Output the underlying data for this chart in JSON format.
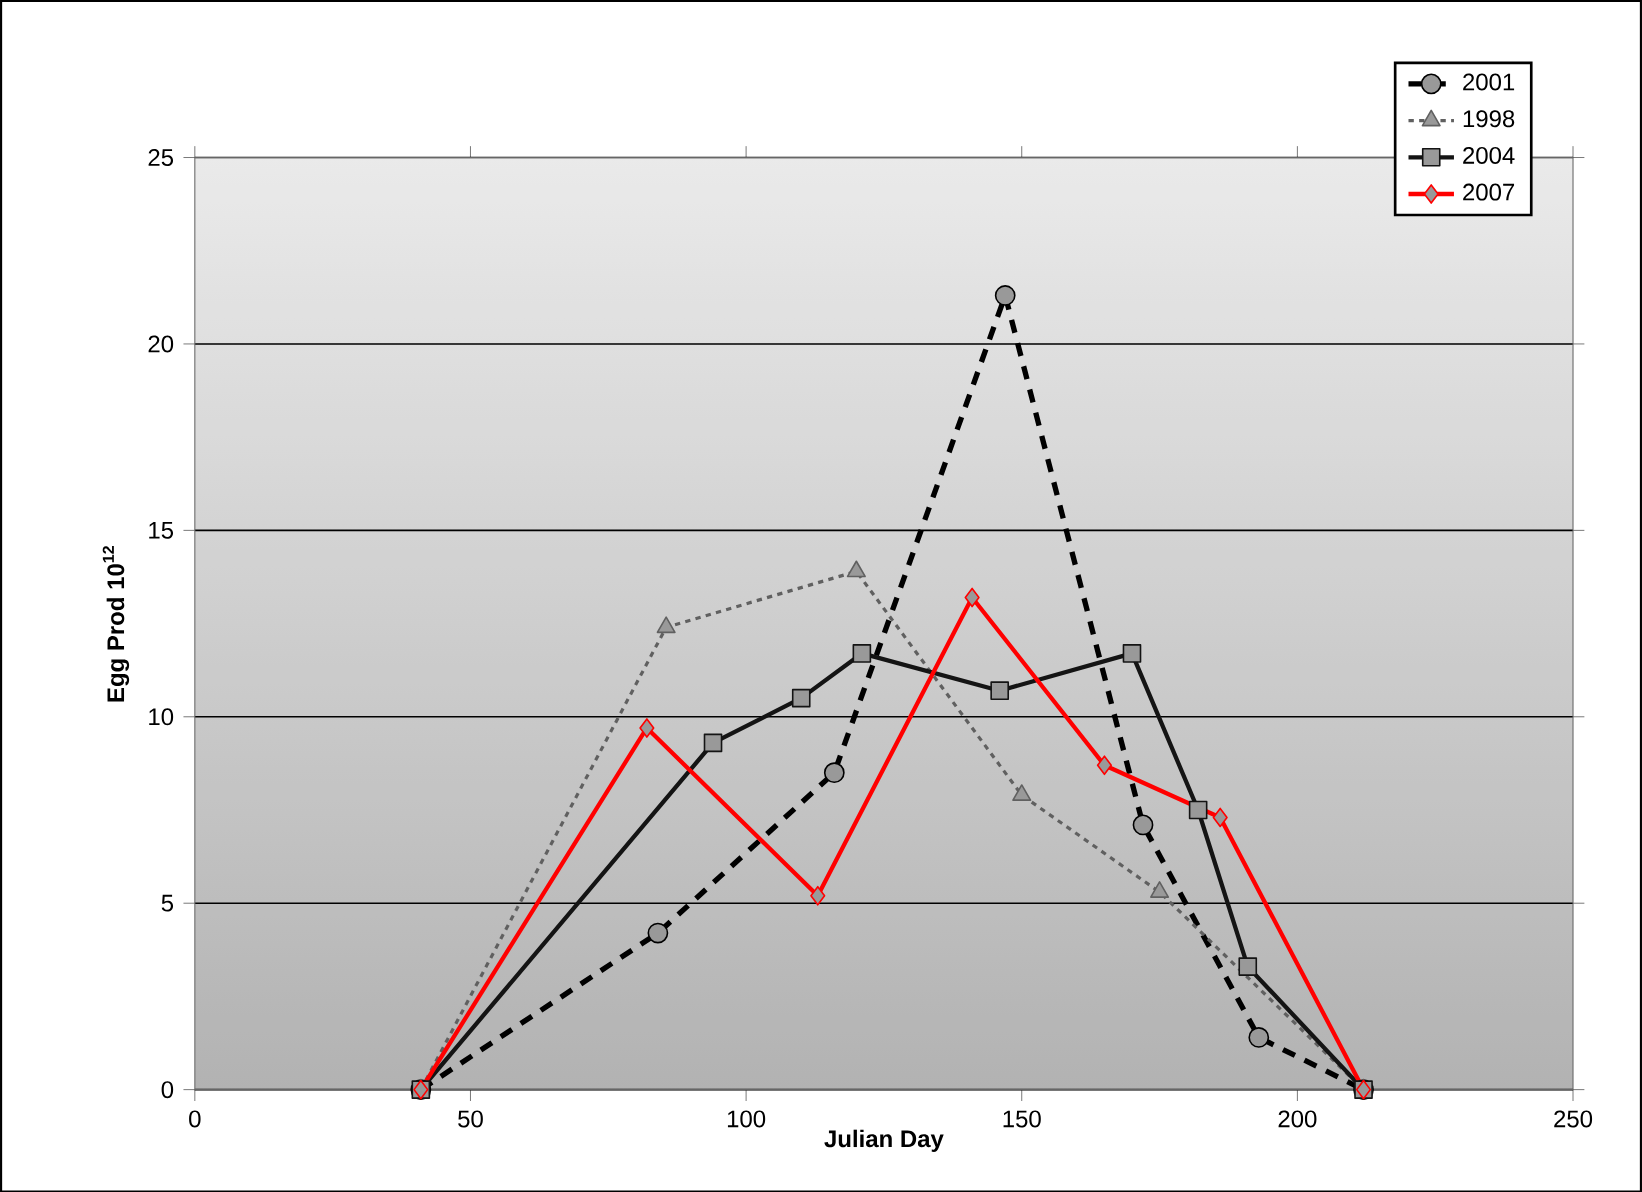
{
  "chart_data": {
    "type": "line",
    "xlabel": "Julian Day",
    "ylabel": "Egg Prod 10$^{12}$",
    "xlim": [
      0,
      250
    ],
    "xticks": [
      0,
      50,
      100,
      150,
      200,
      250
    ],
    "ylim": [
      0,
      25
    ],
    "yticks": [
      0,
      5,
      10,
      15,
      20,
      25
    ],
    "grid": "y",
    "legend": "top right",
    "series": [
      {
        "name": "2001",
        "color": "#000000",
        "marker": "circle",
        "line_style": "dashed",
        "x": [
          41,
          84,
          116,
          147,
          172,
          193,
          212
        ],
        "values": [
          0,
          4.2,
          8.5,
          21.3,
          7.1,
          1.4,
          0
        ]
      },
      {
        "name": "1998",
        "color": "#606060",
        "marker": "triangle",
        "line_style": "dotted",
        "x": [
          41,
          85.5,
          120,
          150,
          175,
          212
        ],
        "values": [
          0,
          12.4,
          13.9,
          7.9,
          5.3,
          0
        ]
      },
      {
        "name": "2004",
        "color": "#141414",
        "marker": "square",
        "line_style": "solid",
        "x": [
          41,
          94,
          110,
          121,
          146,
          170,
          182,
          191,
          212
        ],
        "values": [
          0,
          9.3,
          10.5,
          11.7,
          10.7,
          11.7,
          7.5,
          3.3,
          0
        ]
      },
      {
        "name": "2007",
        "color": "#ff0000",
        "marker": "diamond",
        "line_style": "solid",
        "x": [
          41,
          82,
          113,
          141,
          165,
          186,
          212
        ],
        "values": [
          0,
          9.7,
          5.2,
          13.2,
          8.7,
          7.3,
          0
        ]
      }
    ]
  }
}
